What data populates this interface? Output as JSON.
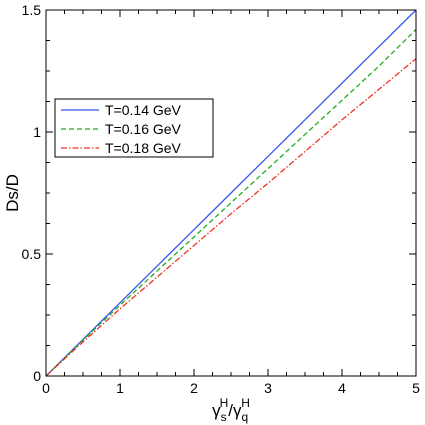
{
  "chart_data": {
    "type": "line",
    "title": "",
    "xlabel": {
      "main1": "γ",
      "sup1": "H",
      "sub1": "s",
      "slash": "/",
      "main2": "γ",
      "sup2": "H",
      "sub2": "q"
    },
    "ylabel": "Ds/D",
    "xlim": [
      0,
      5
    ],
    "ylim": [
      0,
      1.5
    ],
    "xticks": [
      0,
      1,
      2,
      3,
      4,
      5
    ],
    "xtick_labels": [
      "0",
      "1",
      "2",
      "3",
      "4",
      "5"
    ],
    "yticks": [
      0,
      0.5,
      1,
      1.5
    ],
    "ytick_labels": [
      "0",
      "0.5",
      "1",
      "1.5"
    ],
    "grid": false,
    "legend_position": "upper-left",
    "x": [
      0,
      0.5,
      1,
      1.5,
      2,
      2.5,
      3,
      3.5,
      4,
      4.5,
      5
    ],
    "series": [
      {
        "name": "T=0.14 GeV",
        "color": "#3355ee",
        "style": "solid",
        "values": [
          0,
          0.15,
          0.3,
          0.45,
          0.6,
          0.75,
          0.9,
          1.05,
          1.2,
          1.35,
          1.5
        ]
      },
      {
        "name": "T=0.16 GeV",
        "color": "#22aa22",
        "style": "dashed",
        "values": [
          0,
          0.147,
          0.29,
          0.43,
          0.57,
          0.71,
          0.85,
          0.99,
          1.13,
          1.27,
          1.42
        ]
      },
      {
        "name": "T=0.18 GeV",
        "color": "#ee3322",
        "style": "dashdot",
        "values": [
          0,
          0.14,
          0.275,
          0.405,
          0.535,
          0.665,
          0.79,
          0.92,
          1.05,
          1.175,
          1.3
        ]
      }
    ]
  }
}
